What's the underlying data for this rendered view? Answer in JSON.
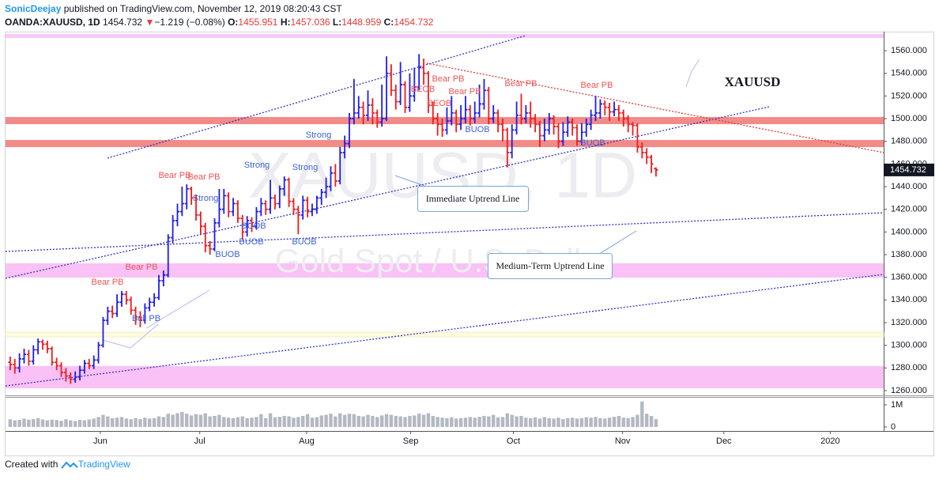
{
  "header": {
    "user": "SonicDeejay",
    "published": "published on TradingView.com, November 12, 2019 08:20:43 CST",
    "symbol": "OANDA:XAUUSD, 1D",
    "last": "1454.732",
    "arrow": "▼",
    "change": "−1.219 (−0.08%)",
    "o_label": "O:",
    "o": "1455.951",
    "h_label": "H:",
    "h": "1457.036",
    "l_label": "L:",
    "l": "1448.959",
    "c_label": "C:",
    "c": "1454.732"
  },
  "footer": {
    "created": "Created with",
    "brand": "TradingView"
  },
  "chart_data": {
    "type": "ohlc",
    "watermark": "XAUUSD, 1D",
    "watermark_sub": "Gold Spot / U.S. Dollar",
    "symbol_note": "XAUUSD",
    "callouts": [
      "Immediate Uptrend Line",
      "Medium-Term Uptrend Line"
    ],
    "annotations": [
      "Bear PB",
      "Bear PB",
      "Bear PB",
      "Bear PB",
      "Bull PB",
      "Strong",
      "Strong",
      "Strong",
      "Strong",
      "BUOB",
      "BUOB",
      "BUOB",
      "BUOB",
      "BEOB",
      "BEOB",
      "Bear PB",
      "Bear PB",
      "BUOB",
      "Bear PB",
      "Bear PB",
      "BUOB"
    ],
    "last_label": "1454.732",
    "up_color": "#1e1ef0",
    "down_color": "#f21b1b",
    "volume_color": "#9aa0ae",
    "xlim": [
      -1,
      188
    ],
    "xticks": [
      {
        "value": 19.4,
        "label": "Jun"
      },
      {
        "value": 40.8,
        "label": "Jul"
      },
      {
        "value": 63.8,
        "label": "Aug"
      },
      {
        "value": 86.2,
        "label": "Sep"
      },
      {
        "value": 108.3,
        "label": "Oct"
      },
      {
        "value": 131.8,
        "label": "Nov"
      },
      {
        "value": 153.6,
        "label": "Dec"
      },
      {
        "value": 176.5,
        "label": "2020"
      }
    ],
    "ylim": [
      1255.8,
      1573.3
    ],
    "yticks": [
      {
        "value": 1260,
        "label": "1260.000"
      },
      {
        "value": 1280,
        "label": "1280.000"
      },
      {
        "value": 1300,
        "label": "1300.000"
      },
      {
        "value": 1320,
        "label": "1320.000"
      },
      {
        "value": 1340,
        "label": "1340.000"
      },
      {
        "value": 1360,
        "label": "1360.000"
      },
      {
        "value": 1380,
        "label": "1380.000"
      },
      {
        "value": 1400,
        "label": "1400.000"
      },
      {
        "value": 1420,
        "label": "1420.000"
      },
      {
        "value": 1440,
        "label": "1440.000"
      },
      {
        "value": 1460,
        "label": "1460.000"
      },
      {
        "value": 1480,
        "label": "1480.000"
      },
      {
        "value": 1500,
        "label": "1500.000"
      },
      {
        "value": 1520,
        "label": "1520.000"
      },
      {
        "value": 1540,
        "label": "1540.000"
      },
      {
        "value": 1560,
        "label": "1560.000"
      }
    ],
    "volume_ylim": [
      -0.18,
      1.32
    ],
    "volume_yticks": [
      0,
      {
        "value": 1,
        "label": "1M"
      }
    ],
    "bars": [
      [
        1285,
        1290,
        1278,
        1283
      ],
      [
        1283,
        1288,
        1275,
        1280
      ],
      [
        1280,
        1293,
        1276,
        1288
      ],
      [
        1288,
        1297,
        1284,
        1292
      ],
      [
        1292,
        1296,
        1282,
        1286
      ],
      [
        1286,
        1300,
        1283,
        1296
      ],
      [
        1296,
        1306,
        1292,
        1303
      ],
      [
        1303,
        1305,
        1296,
        1301
      ],
      [
        1301,
        1304,
        1293,
        1297
      ],
      [
        1297,
        1299,
        1282,
        1285
      ],
      [
        1285,
        1289,
        1278,
        1282
      ],
      [
        1282,
        1285,
        1272,
        1276
      ],
      [
        1276,
        1280,
        1268,
        1273
      ],
      [
        1273,
        1276,
        1266,
        1270
      ],
      [
        1270,
        1277,
        1267,
        1272
      ],
      [
        1272,
        1282,
        1269,
        1278
      ],
      [
        1278,
        1287,
        1275,
        1284
      ],
      [
        1284,
        1288,
        1279,
        1282
      ],
      [
        1282,
        1291,
        1279,
        1287
      ],
      [
        1287,
        1303,
        1284,
        1300
      ],
      [
        1300,
        1325,
        1298,
        1322
      ],
      [
        1322,
        1334,
        1318,
        1330
      ],
      [
        1330,
        1335,
        1324,
        1328
      ],
      [
        1328,
        1345,
        1325,
        1338
      ],
      [
        1338,
        1348,
        1334,
        1345
      ],
      [
        1345,
        1348,
        1336,
        1340
      ],
      [
        1340,
        1343,
        1327,
        1331
      ],
      [
        1331,
        1334,
        1318,
        1325
      ],
      [
        1325,
        1330,
        1316,
        1322
      ],
      [
        1322,
        1337,
        1319,
        1333
      ],
      [
        1333,
        1342,
        1330,
        1338
      ],
      [
        1338,
        1346,
        1334,
        1342
      ],
      [
        1342,
        1362,
        1340,
        1357
      ],
      [
        1357,
        1366,
        1352,
        1362
      ],
      [
        1362,
        1398,
        1360,
        1395
      ],
      [
        1395,
        1415,
        1390,
        1410
      ],
      [
        1410,
        1425,
        1405,
        1418
      ],
      [
        1418,
        1440,
        1414,
        1425
      ],
      [
        1425,
        1442,
        1420,
        1438
      ],
      [
        1438,
        1440,
        1424,
        1430
      ],
      [
        1430,
        1433,
        1410,
        1415
      ],
      [
        1415,
        1418,
        1398,
        1405
      ],
      [
        1405,
        1408,
        1382,
        1388
      ],
      [
        1388,
        1392,
        1380,
        1385
      ],
      [
        1385,
        1412,
        1383,
        1408
      ],
      [
        1408,
        1438,
        1404,
        1420
      ],
      [
        1420,
        1438,
        1416,
        1432
      ],
      [
        1432,
        1435,
        1413,
        1418
      ],
      [
        1418,
        1430,
        1414,
        1425
      ],
      [
        1425,
        1428,
        1408,
        1412
      ],
      [
        1412,
        1415,
        1393,
        1400
      ],
      [
        1400,
        1414,
        1396,
        1410
      ],
      [
        1410,
        1413,
        1400,
        1405
      ],
      [
        1405,
        1422,
        1402,
        1418
      ],
      [
        1418,
        1430,
        1414,
        1425
      ],
      [
        1425,
        1428,
        1415,
        1420
      ],
      [
        1420,
        1446,
        1416,
        1430
      ],
      [
        1430,
        1433,
        1420,
        1425
      ],
      [
        1425,
        1441,
        1421,
        1438
      ],
      [
        1438,
        1449,
        1432,
        1446
      ],
      [
        1446,
        1448,
        1422,
        1427
      ],
      [
        1427,
        1430,
        1415,
        1420
      ],
      [
        1420,
        1423,
        1398,
        1415
      ],
      [
        1415,
        1432,
        1411,
        1428
      ],
      [
        1428,
        1431,
        1413,
        1418
      ],
      [
        1418,
        1425,
        1414,
        1420
      ],
      [
        1420,
        1432,
        1416,
        1430
      ],
      [
        1430,
        1438,
        1424,
        1435
      ],
      [
        1435,
        1448,
        1430,
        1440
      ],
      [
        1440,
        1458,
        1436,
        1452
      ],
      [
        1452,
        1460,
        1440,
        1445
      ],
      [
        1445,
        1475,
        1442,
        1470
      ],
      [
        1470,
        1485,
        1465,
        1478
      ],
      [
        1478,
        1505,
        1474,
        1500
      ],
      [
        1500,
        1535,
        1495,
        1505
      ],
      [
        1505,
        1520,
        1500,
        1510
      ],
      [
        1510,
        1515,
        1495,
        1503
      ],
      [
        1503,
        1525,
        1498,
        1512
      ],
      [
        1512,
        1518,
        1495,
        1505
      ],
      [
        1505,
        1508,
        1492,
        1497
      ],
      [
        1497,
        1530,
        1493,
        1500
      ],
      [
        1500,
        1555,
        1498,
        1540
      ],
      [
        1540,
        1548,
        1520,
        1525
      ],
      [
        1525,
        1530,
        1508,
        1515
      ],
      [
        1515,
        1550,
        1512,
        1530
      ],
      [
        1530,
        1533,
        1505,
        1510
      ],
      [
        1510,
        1540,
        1506,
        1520
      ],
      [
        1520,
        1545,
        1515,
        1528
      ],
      [
        1528,
        1557,
        1525,
        1545
      ],
      [
        1545,
        1553,
        1530,
        1540
      ],
      [
        1540,
        1542,
        1505,
        1512
      ],
      [
        1512,
        1515,
        1495,
        1500
      ],
      [
        1500,
        1505,
        1485,
        1495
      ],
      [
        1495,
        1500,
        1484,
        1490
      ],
      [
        1490,
        1510,
        1486,
        1498
      ],
      [
        1498,
        1520,
        1494,
        1505
      ],
      [
        1505,
        1508,
        1488,
        1495
      ],
      [
        1495,
        1512,
        1490,
        1500
      ],
      [
        1500,
        1520,
        1496,
        1508
      ],
      [
        1508,
        1512,
        1494,
        1500
      ],
      [
        1500,
        1515,
        1496,
        1505
      ],
      [
        1505,
        1530,
        1501,
        1513
      ],
      [
        1513,
        1535,
        1508,
        1525
      ],
      [
        1525,
        1528,
        1495,
        1500
      ],
      [
        1500,
        1512,
        1496,
        1505
      ],
      [
        1505,
        1508,
        1488,
        1495
      ],
      [
        1495,
        1500,
        1480,
        1490
      ],
      [
        1490,
        1492,
        1457,
        1470
      ],
      [
        1470,
        1495,
        1465,
        1490
      ],
      [
        1490,
        1515,
        1486,
        1503
      ],
      [
        1503,
        1522,
        1495,
        1500
      ],
      [
        1500,
        1512,
        1496,
        1505
      ],
      [
        1505,
        1515,
        1492,
        1500
      ],
      [
        1500,
        1504,
        1488,
        1495
      ],
      [
        1495,
        1498,
        1475,
        1485
      ],
      [
        1485,
        1500,
        1480,
        1490
      ],
      [
        1490,
        1505,
        1486,
        1500
      ],
      [
        1500,
        1503,
        1486,
        1493
      ],
      [
        1493,
        1496,
        1474,
        1480
      ],
      [
        1480,
        1497,
        1476,
        1488
      ],
      [
        1488,
        1502,
        1484,
        1497
      ],
      [
        1497,
        1500,
        1485,
        1492
      ],
      [
        1492,
        1495,
        1476,
        1480
      ],
      [
        1480,
        1496,
        1477,
        1488
      ],
      [
        1488,
        1500,
        1484,
        1495
      ],
      [
        1495,
        1508,
        1490,
        1503
      ],
      [
        1503,
        1520,
        1498,
        1505
      ],
      [
        1505,
        1517,
        1500,
        1513
      ],
      [
        1513,
        1516,
        1503,
        1510
      ],
      [
        1510,
        1514,
        1498,
        1506
      ],
      [
        1506,
        1515,
        1502,
        1508
      ],
      [
        1508,
        1512,
        1498,
        1505
      ],
      [
        1505,
        1508,
        1493,
        1500
      ],
      [
        1500,
        1503,
        1488,
        1495
      ],
      [
        1495,
        1497,
        1485,
        1494
      ],
      [
        1494,
        1496,
        1470,
        1475
      ],
      [
        1475,
        1479,
        1465,
        1470
      ],
      [
        1470,
        1474,
        1460,
        1466
      ],
      [
        1466,
        1468,
        1452,
        1460
      ],
      [
        1455.951,
        1457.036,
        1448.959,
        1454.732
      ]
    ],
    "volume": [
      0.35,
      0.3,
      0.32,
      0.38,
      0.33,
      0.36,
      0.4,
      0.34,
      0.3,
      0.33,
      0.31,
      0.28,
      0.35,
      0.3,
      0.27,
      0.32,
      0.3,
      0.34,
      0.38,
      0.45,
      0.55,
      0.48,
      0.4,
      0.42,
      0.45,
      0.38,
      0.35,
      0.4,
      0.36,
      0.42,
      0.38,
      0.4,
      0.48,
      0.45,
      0.6,
      0.55,
      0.62,
      0.68,
      0.6,
      0.52,
      0.58,
      0.55,
      0.62,
      0.48,
      0.5,
      0.55,
      0.45,
      0.42,
      0.4,
      0.44,
      0.48,
      0.4,
      0.42,
      0.45,
      0.58,
      0.4,
      0.62,
      0.44,
      0.46,
      0.5,
      0.48,
      0.42,
      0.45,
      0.5,
      0.58,
      0.42,
      0.44,
      0.52,
      0.55,
      0.6,
      0.48,
      0.62,
      0.55,
      0.6,
      0.58,
      0.5,
      0.48,
      0.55,
      0.5,
      0.45,
      0.52,
      0.58,
      0.55,
      0.5,
      0.48,
      0.45,
      0.5,
      0.52,
      0.6,
      0.55,
      0.62,
      0.5,
      0.45,
      0.42,
      0.4,
      0.44,
      0.38,
      0.4,
      0.42,
      0.45,
      0.42,
      0.46,
      0.5,
      0.48,
      0.55,
      0.44,
      0.45,
      0.62,
      0.55,
      0.48,
      0.5,
      0.42,
      0.4,
      0.44,
      0.38,
      0.45,
      0.4,
      0.38,
      0.42,
      0.36,
      0.4,
      0.42,
      0.38,
      0.4,
      0.44,
      0.42,
      0.45,
      0.4,
      0.38,
      0.42,
      0.46,
      0.5,
      0.42,
      0.4,
      0.45,
      0.55,
      1.15,
      0.6,
      0.5,
      0.36
    ]
  }
}
